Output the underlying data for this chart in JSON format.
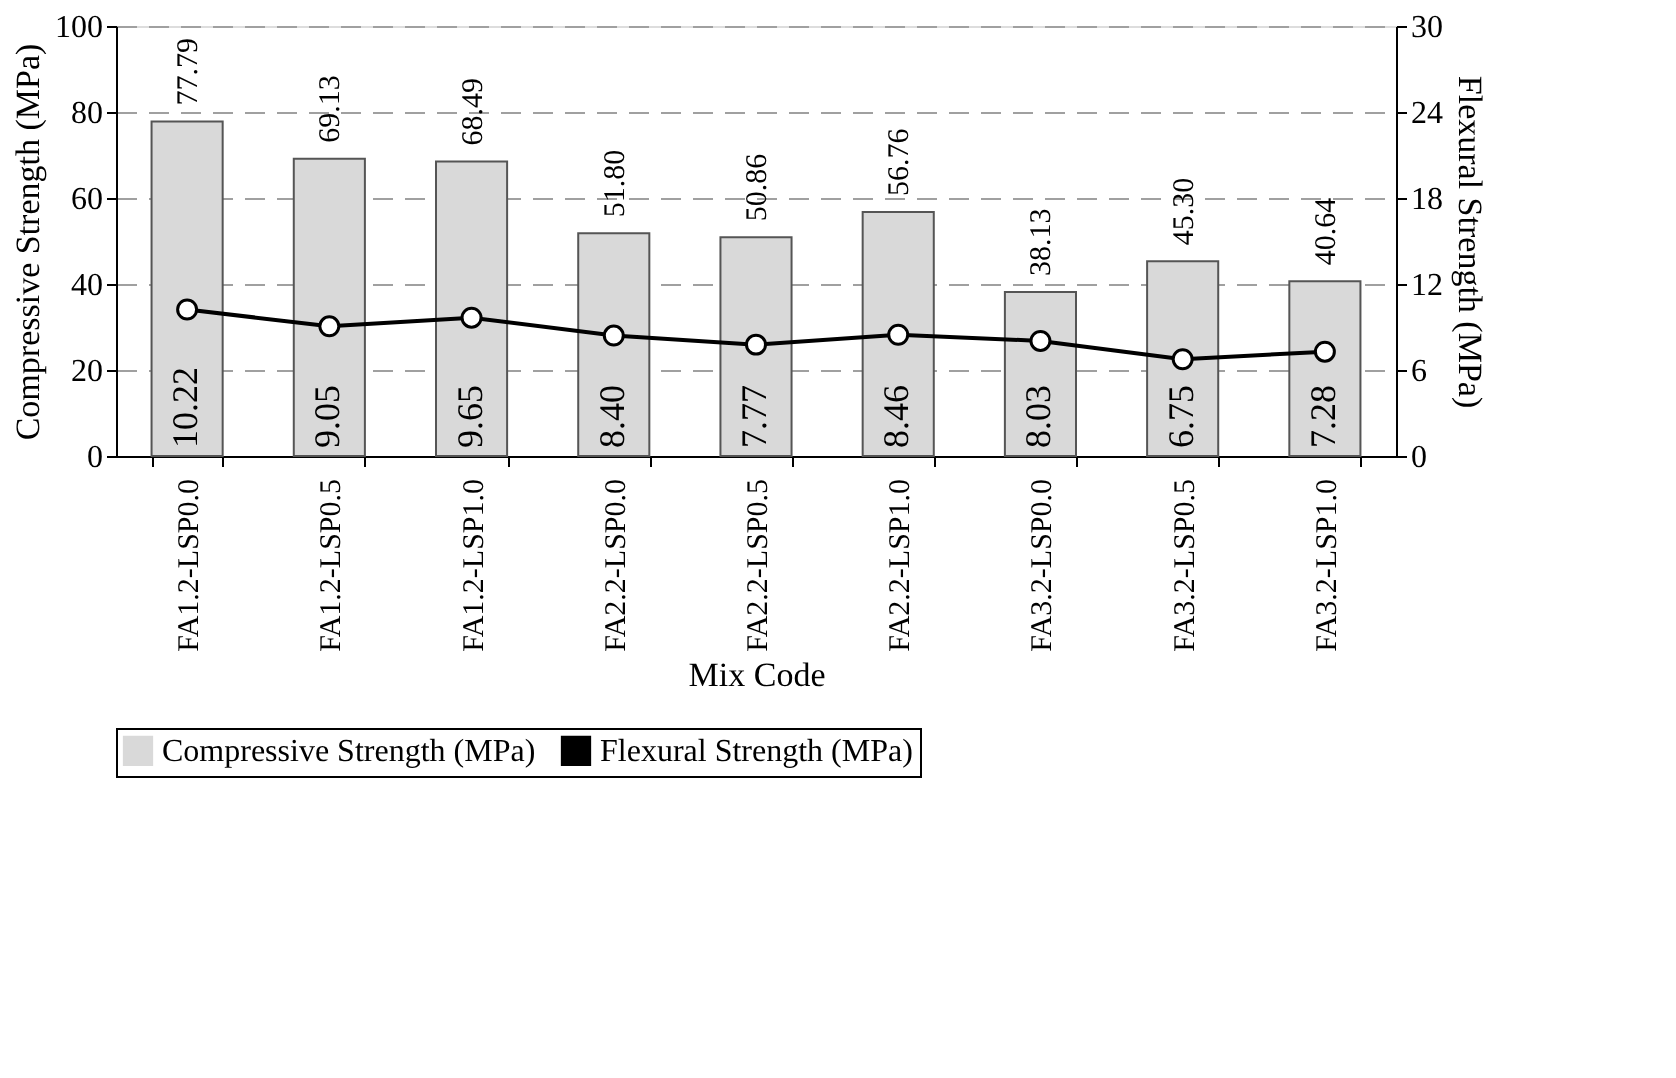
{
  "chart_data": {
    "type": "bar",
    "xlabel": "Mix Code",
    "ylabel": "Compressive Strength (MPa)",
    "y2label": "Flexural Strength (MPa)",
    "categories": [
      "FA1.2-LSP0.0",
      "FA1.2-LSP0.5",
      "FA1.2-LSP1.0",
      "FA2.2-LSP0.0",
      "FA2.2-LSP0.5",
      "FA2.2-LSP1.0",
      "FA3.2-LSP0.0",
      "FA3.2-LSP0.5",
      "FA3.2-LSP1.0"
    ],
    "series": [
      {
        "name": "Compressive Strength (MPa)",
        "color": "#d9d9d9",
        "values": [
          77.79,
          69.13,
          68.49,
          51.8,
          50.86,
          56.76,
          38.13,
          45.3,
          40.64
        ],
        "value_labels": [
          "77.79",
          "69.13",
          "68.49",
          "51.80",
          "50.86",
          "56.76",
          "38.13",
          "45.30",
          "40.64"
        ]
      },
      {
        "name": "Flexural Strength (MPa)",
        "type": "line",
        "axis": "y2",
        "color": "#000000",
        "marker": "circle",
        "values": [
          10.22,
          9.05,
          9.65,
          8.4,
          7.77,
          8.46,
          8.03,
          6.75,
          7.28
        ],
        "value_labels": [
          "10.22",
          "9.05",
          "9.65",
          "8.40",
          "7.77",
          "8.46",
          "8.03",
          "6.75",
          "7.28"
        ]
      }
    ],
    "ylim": [
      0,
      100
    ],
    "yticks": [
      0,
      20,
      40,
      60,
      80,
      100
    ],
    "y2lim": [
      0,
      30
    ],
    "y2ticks": [
      0,
      6,
      12,
      18,
      24,
      30
    ],
    "grid": "y",
    "legend": "bottom"
  }
}
